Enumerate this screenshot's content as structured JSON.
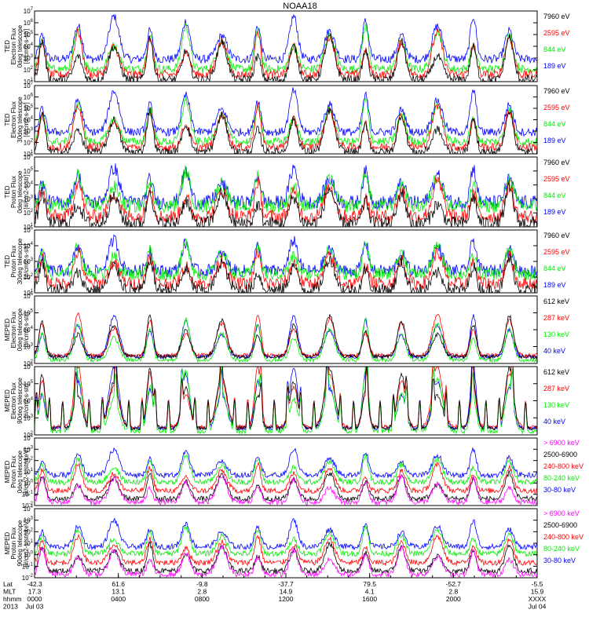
{
  "chart_data": {
    "type": "line",
    "title": "NOAA18",
    "colors": {
      "blue": "#0000ff",
      "green": "#00ee00",
      "red": "#ff0000",
      "black": "#000000",
      "magenta": "#ff00ff"
    },
    "panels": [
      {
        "ylabel_lines": [
          "TED",
          "Electron Flux",
          "0deg telescope",
          "[#/cm2-s-str]"
        ],
        "y_exponent_range": [
          1,
          7
        ],
        "legend": [
          {
            "label": "7960 eV",
            "color": "black"
          },
          {
            "label": "2595 eV",
            "color": "red"
          },
          {
            "label": "844 eV",
            "color": "green"
          },
          {
            "label": "189 eV",
            "color": "blue"
          }
        ]
      },
      {
        "ylabel_lines": [
          "TED",
          "Electron Flux",
          "30deg telescope",
          "[#/cm2-s-str]"
        ],
        "y_exponent_range": [
          1,
          7
        ],
        "legend": [
          {
            "label": "7960 eV",
            "color": "black"
          },
          {
            "label": "2595 eV",
            "color": "red"
          },
          {
            "label": "844 eV",
            "color": "green"
          },
          {
            "label": "189 eV",
            "color": "blue"
          }
        ]
      },
      {
        "ylabel_lines": [
          "TED",
          "Proton Flux",
          "0deg telescope",
          "[#/cm2-s-str]"
        ],
        "y_exponent_range": [
          1,
          6
        ],
        "legend": [
          {
            "label": "7960 eV",
            "color": "black"
          },
          {
            "label": "2595 eV",
            "color": "red"
          },
          {
            "label": "844 eV",
            "color": "green"
          },
          {
            "label": "189 eV",
            "color": "blue"
          }
        ]
      },
      {
        "ylabel_lines": [
          "TED",
          "Proton Flux",
          "30deg telescope",
          "[#/cm2-s-str]"
        ],
        "y_exponent_range": [
          1,
          5
        ],
        "legend": [
          {
            "label": "7960 eV",
            "color": "black"
          },
          {
            "label": "2595 eV",
            "color": "red"
          },
          {
            "label": "844 eV",
            "color": "green"
          },
          {
            "label": "189 eV",
            "color": "blue"
          }
        ]
      },
      {
        "ylabel_lines": [
          "MEPED",
          "Electron Flux",
          "0deg telescope",
          "[#/cm2-s-str]"
        ],
        "y_exponent_range": [
          2,
          6
        ],
        "legend": [
          {
            "label": "612 keV",
            "color": "black"
          },
          {
            "label": "287 keV",
            "color": "red"
          },
          {
            "label": "130 keV",
            "color": "green"
          },
          {
            "label": "40 keV",
            "color": "blue"
          }
        ]
      },
      {
        "ylabel_lines": [
          "MEPED",
          "Electron Flux",
          "90deg telescope",
          "[#/cm2-s-str]"
        ],
        "y_exponent_range": [
          2,
          6
        ],
        "legend": [
          {
            "label": "612 keV",
            "color": "black"
          },
          {
            "label": "287 keV",
            "color": "red"
          },
          {
            "label": "130 keV",
            "color": "green"
          },
          {
            "label": "40 keV",
            "color": "blue"
          }
        ]
      },
      {
        "ylabel_lines": [
          "MEPED",
          "Proton Flux",
          "0deg telescope",
          "[#/cm2-s-str-keV]"
        ],
        "y_exponent_range": [
          -2,
          4
        ],
        "legend": [
          {
            "label": "> 6900 keV",
            "color": "magenta"
          },
          {
            "label": "2500-6900",
            "color": "black"
          },
          {
            "label": "240-800 keV",
            "color": "red"
          },
          {
            "label": "80-240 keV",
            "color": "green"
          },
          {
            "label": "30-80 keV",
            "color": "blue"
          }
        ]
      },
      {
        "ylabel_lines": [
          "MEPED",
          "Proton Flux",
          "90deg telescope",
          "[#/cm2-s-str-keV]"
        ],
        "y_exponent_range": [
          -2,
          4
        ],
        "legend": [
          {
            "label": "> 6900 keV",
            "color": "magenta"
          },
          {
            "label": "2500-6900",
            "color": "black"
          },
          {
            "label": "240-800 keV",
            "color": "red"
          },
          {
            "label": "80-240 keV",
            "color": "green"
          },
          {
            "label": "30-80 keV",
            "color": "blue"
          }
        ]
      }
    ],
    "x_axis": {
      "row_labels": [
        "Lat",
        "MLT",
        "hhmm",
        "2013"
      ],
      "ticks": [
        {
          "time": "0000",
          "lat": "-42.3",
          "mlt": "17.3",
          "date": "Jul 03"
        },
        {
          "time": "0400",
          "lat": "61.6",
          "mlt": "13.1",
          "date": ""
        },
        {
          "time": "0800",
          "lat": "-9.8",
          "mlt": "2.8",
          "date": ""
        },
        {
          "time": "1200",
          "lat": "-37.7",
          "mlt": "14.9",
          "date": ""
        },
        {
          "time": "1600",
          "lat": "79.5",
          "mlt": "4.1",
          "date": ""
        },
        {
          "time": "2000",
          "lat": "-52.7",
          "mlt": "2.8",
          "date": ""
        },
        {
          "time": "XXXX",
          "lat": "-5.5",
          "mlt": "15.9",
          "date": "Jul 04"
        }
      ]
    }
  }
}
